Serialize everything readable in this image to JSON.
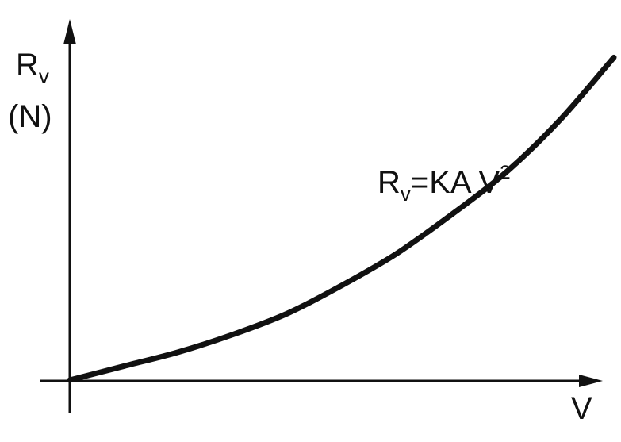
{
  "chart_data": {
    "type": "line",
    "title": "",
    "ylabel": {
      "symbol": "R",
      "subscript": "v",
      "unit": "(N)"
    },
    "xlabel": "V",
    "grid": false,
    "legend": "none",
    "xlim": [
      0,
      1
    ],
    "ylim": [
      0,
      1
    ],
    "series": [
      {
        "x": [
          0,
          0.1,
          0.2,
          0.3,
          0.4,
          0.5,
          0.6,
          0.7,
          0.8,
          0.9,
          1.0
        ],
        "y": [
          0,
          0.04,
          0.08,
          0.13,
          0.19,
          0.27,
          0.36,
          0.47,
          0.59,
          0.74,
          0.92
        ]
      }
    ],
    "annotations": [
      {
        "lhs": "R",
        "lhs_subscript": "v",
        "equals": "=",
        "rhs": "KA V",
        "rhs_superscript": "2"
      }
    ],
    "colors": {
      "ink": "#111111",
      "background": "#ffffff"
    }
  }
}
